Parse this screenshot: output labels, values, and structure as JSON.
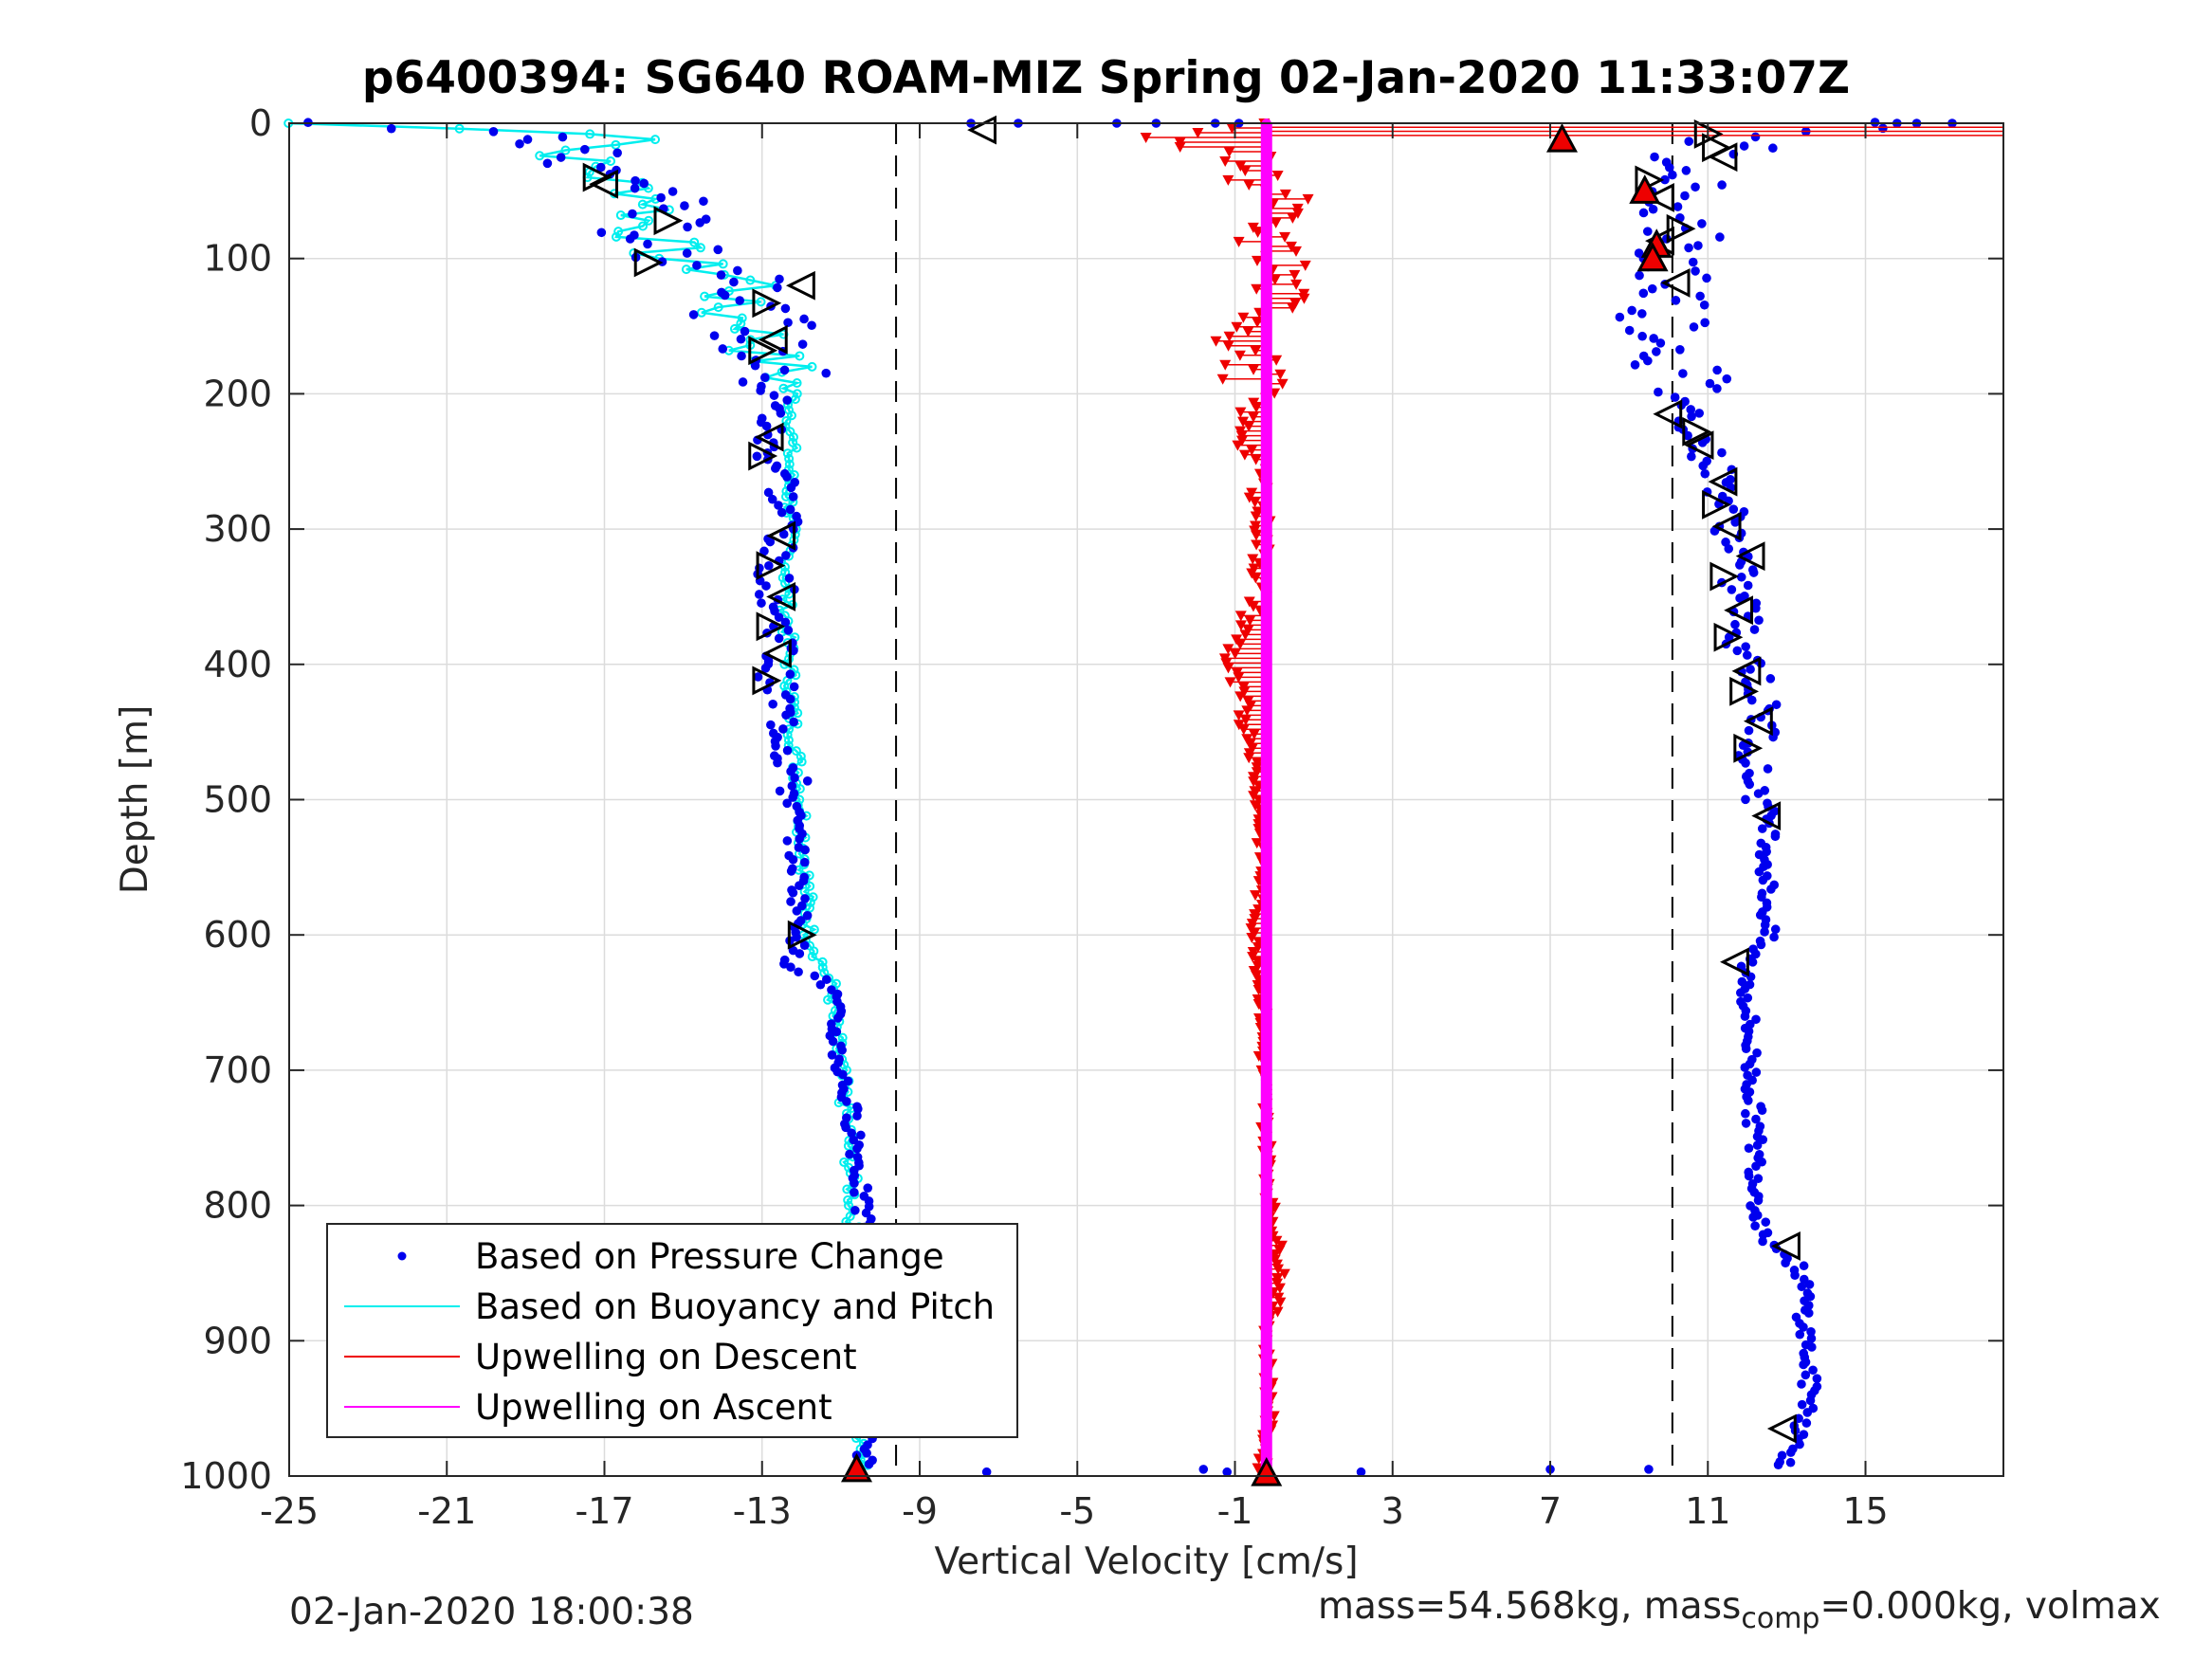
{
  "title": "p6400394: SG640 ROAM-MIZ Spring 02-Jan-2020 11:33:07Z",
  "footer": {
    "timestamp": "02-Jan-2020 18:00:38",
    "mass_text": "mass=54.568kg, mass",
    "mass_sub": "comp",
    "mass_rest": "=0.000kg, volmax"
  },
  "colors": {
    "pressure": "#0000ee",
    "buoyancy": "#00eeee",
    "up_descent": "#ee0000",
    "up_ascent": "#ff00ff",
    "grid": "#dcdcdc",
    "axis": "#262626"
  },
  "chart_data": {
    "type": "scatter",
    "xlabel": "Vertical Velocity [cm/s]",
    "ylabel": "Depth [m]",
    "xlim": [
      -25,
      18.5
    ],
    "ylim": [
      0,
      1000
    ],
    "y_reversed": true,
    "grid": true,
    "xticks": [
      -25,
      -21,
      -17,
      -13,
      -9,
      -5,
      -1,
      3,
      7,
      11,
      15
    ],
    "yticks": [
      0,
      100,
      200,
      300,
      400,
      500,
      600,
      700,
      800,
      900,
      1000
    ],
    "reference_lines_x": [
      -9.6,
      10.1
    ],
    "legend": {
      "placement": "bottom-left",
      "entries": [
        {
          "label": "Based on Pressure Change",
          "style": "dot",
          "color": "#0000ee"
        },
        {
          "label": "Based on Buoyancy and Pitch",
          "style": "line",
          "color": "#00eeee"
        },
        {
          "label": "Upwelling on Descent",
          "style": "line",
          "color": "#ee0000"
        },
        {
          "label": "Upwelling on Ascent",
          "style": "line",
          "color": "#ff00ff"
        }
      ]
    },
    "series": [
      {
        "key": "descent_pressure",
        "depth": [
          0,
          10,
          20,
          30,
          40,
          50,
          60,
          70,
          80,
          90,
          100,
          110,
          120,
          130,
          140,
          150,
          160,
          170,
          180,
          200,
          220,
          240,
          260,
          280,
          300,
          320,
          340,
          360,
          380,
          400,
          420,
          450,
          500,
          550,
          600,
          620,
          640,
          660,
          700,
          750,
          800,
          820,
          850,
          900,
          950,
          990
        ],
        "x": [
          -24.5,
          -19,
          -18,
          -17.5,
          -17,
          -15.5,
          -15,
          -15.5,
          -16,
          -15.5,
          -15,
          -13.5,
          -12.5,
          -13,
          -13.5,
          -12.8,
          -13.2,
          -13,
          -12.5,
          -12.6,
          -12.8,
          -12.9,
          -12.4,
          -12.5,
          -12.3,
          -12.8,
          -12.6,
          -12.7,
          -12.4,
          -12.7,
          -12.6,
          -12.4,
          -12.2,
          -12.1,
          -12,
          -12.3,
          -11.2,
          -11.2,
          -11.0,
          -10.6,
          -10.5,
          -10.3,
          -10.5,
          -10.4,
          -10.3,
          -10.4
        ]
      },
      {
        "key": "descent_buoyancy",
        "depth": [
          0,
          10,
          20,
          30,
          40,
          50,
          60,
          70,
          80,
          90,
          100,
          110,
          120,
          130,
          140,
          150,
          160,
          170,
          180,
          200,
          250,
          300,
          350,
          400,
          450,
          500,
          550,
          600,
          640,
          660,
          700,
          750,
          800,
          850,
          900,
          950,
          990
        ],
        "x": [
          -25,
          -14.5,
          -18,
          -17.5,
          -17,
          -16,
          -15.5,
          -16,
          -16,
          -15.5,
          -15.5,
          -14,
          -13,
          -14,
          -14,
          -13,
          -13,
          -13,
          -12.5,
          -12.2,
          -12.3,
          -12.3,
          -12.4,
          -12.3,
          -12.2,
          -12.0,
          -11.9,
          -11.8,
          -11.2,
          -11.2,
          -11.0,
          -10.8,
          -10.7,
          -10.7,
          -10.6,
          -10.5,
          -10.4
        ]
      },
      {
        "key": "ascent_pressure",
        "depth": [
          0,
          10,
          20,
          30,
          40,
          50,
          60,
          70,
          80,
          90,
          100,
          110,
          120,
          140,
          160,
          180,
          200,
          220,
          240,
          260,
          280,
          300,
          320,
          340,
          360,
          380,
          400,
          420,
          450,
          480,
          500,
          520,
          550,
          600,
          620,
          650,
          700,
          750,
          800,
          820,
          850,
          900,
          950,
          990
        ],
        "x": [
          16.5,
          11,
          11.5,
          9.5,
          11.5,
          9.5,
          11.0,
          9.8,
          10.5,
          9.8,
          10,
          10.3,
          10.2,
          10,
          10.2,
          10.3,
          10.4,
          10.6,
          10.9,
          11.3,
          11.5,
          11.6,
          11.8,
          11.7,
          12.0,
          11.8,
          12.2,
          12.3,
          12.4,
          12.1,
          12.4,
          12.6,
          12.5,
          12.5,
          12.0,
          12.0,
          12.1,
          12.2,
          12.3,
          12.4,
          13.4,
          13.5,
          13.6,
          13.0
        ]
      },
      {
        "key": "upwelling_descent",
        "depth": [
          0,
          10,
          20,
          40,
          60,
          80,
          100,
          120,
          140,
          160,
          180,
          200,
          220,
          240,
          260,
          280,
          300,
          350,
          400,
          450,
          500,
          550,
          600,
          650,
          700,
          750,
          800,
          850,
          900,
          950,
          990
        ],
        "x": [
          -0.3,
          -3.5,
          -1.0,
          -0.5,
          0.3,
          -0.6,
          0.2,
          0.1,
          0.0,
          -0.8,
          -0.6,
          -0.4,
          -0.8,
          -0.7,
          -0.3,
          -0.4,
          -0.3,
          -0.4,
          -1.2,
          -0.6,
          -0.4,
          -0.3,
          -0.5,
          -0.3,
          -0.3,
          -0.2,
          -0.1,
          0.2,
          -0.2,
          -0.1,
          -0.3
        ]
      },
      {
        "key": "upwelling_ascent",
        "depth": [
          0,
          1000
        ],
        "x": [
          -0.2,
          -0.2
        ]
      }
    ],
    "markers": {
      "red_triangles": [
        {
          "x": 7.3,
          "depth": 12
        },
        {
          "x": 9.4,
          "depth": 50
        },
        {
          "x": 9.7,
          "depth": 90
        },
        {
          "x": 9.6,
          "depth": 100
        },
        {
          "x": -10.6,
          "depth": 995
        },
        {
          "x": -0.2,
          "depth": 998
        }
      ],
      "open_triangles": [
        {
          "x": -7.4,
          "depth": 5,
          "dir": "left"
        },
        {
          "x": -17.2,
          "depth": 40,
          "dir": "right"
        },
        {
          "x": -17.0,
          "depth": 45,
          "dir": "left"
        },
        {
          "x": -15.4,
          "depth": 72,
          "dir": "right"
        },
        {
          "x": -15.9,
          "depth": 103,
          "dir": "right"
        },
        {
          "x": -12.0,
          "depth": 120,
          "dir": "left"
        },
        {
          "x": -12.9,
          "depth": 133,
          "dir": "right"
        },
        {
          "x": -12.7,
          "depth": 160,
          "dir": "left"
        },
        {
          "x": -13.0,
          "depth": 168,
          "dir": "right"
        },
        {
          "x": -12.8,
          "depth": 232,
          "dir": "left"
        },
        {
          "x": -13.0,
          "depth": 246,
          "dir": "right"
        },
        {
          "x": -12.5,
          "depth": 305,
          "dir": "left"
        },
        {
          "x": -12.8,
          "depth": 327,
          "dir": "right"
        },
        {
          "x": -12.5,
          "depth": 350,
          "dir": "left"
        },
        {
          "x": -12.8,
          "depth": 372,
          "dir": "right"
        },
        {
          "x": -12.6,
          "depth": 392,
          "dir": "left"
        },
        {
          "x": -12.9,
          "depth": 412,
          "dir": "right"
        },
        {
          "x": -12.0,
          "depth": 600,
          "dir": "right"
        },
        {
          "x": 11.0,
          "depth": 8,
          "dir": "right"
        },
        {
          "x": 11.4,
          "depth": 25,
          "dir": "left"
        },
        {
          "x": 11.2,
          "depth": 18,
          "dir": "right"
        },
        {
          "x": 9.5,
          "depth": 42,
          "dir": "right"
        },
        {
          "x": 9.8,
          "depth": 55,
          "dir": "left"
        },
        {
          "x": 10.3,
          "depth": 78,
          "dir": "right"
        },
        {
          "x": 9.8,
          "depth": 87,
          "dir": "left"
        },
        {
          "x": 10.2,
          "depth": 118,
          "dir": "left"
        },
        {
          "x": 10.0,
          "depth": 215,
          "dir": "left"
        },
        {
          "x": 10.7,
          "depth": 228,
          "dir": "right"
        },
        {
          "x": 10.8,
          "depth": 238,
          "dir": "left"
        },
        {
          "x": 11.4,
          "depth": 265,
          "dir": "left"
        },
        {
          "x": 11.2,
          "depth": 282,
          "dir": "right"
        },
        {
          "x": 11.5,
          "depth": 298,
          "dir": "left"
        },
        {
          "x": 12.1,
          "depth": 320,
          "dir": "left"
        },
        {
          "x": 11.4,
          "depth": 335,
          "dir": "right"
        },
        {
          "x": 11.8,
          "depth": 360,
          "dir": "left"
        },
        {
          "x": 11.5,
          "depth": 380,
          "dir": "right"
        },
        {
          "x": 12.0,
          "depth": 405,
          "dir": "left"
        },
        {
          "x": 11.9,
          "depth": 420,
          "dir": "right"
        },
        {
          "x": 12.3,
          "depth": 442,
          "dir": "left"
        },
        {
          "x": 12.0,
          "depth": 462,
          "dir": "right"
        },
        {
          "x": 12.5,
          "depth": 512,
          "dir": "left"
        },
        {
          "x": 11.7,
          "depth": 620,
          "dir": "left"
        },
        {
          "x": 13.0,
          "depth": 830,
          "dir": "left"
        },
        {
          "x": 12.9,
          "depth": 965,
          "dir": "left"
        }
      ]
    }
  }
}
